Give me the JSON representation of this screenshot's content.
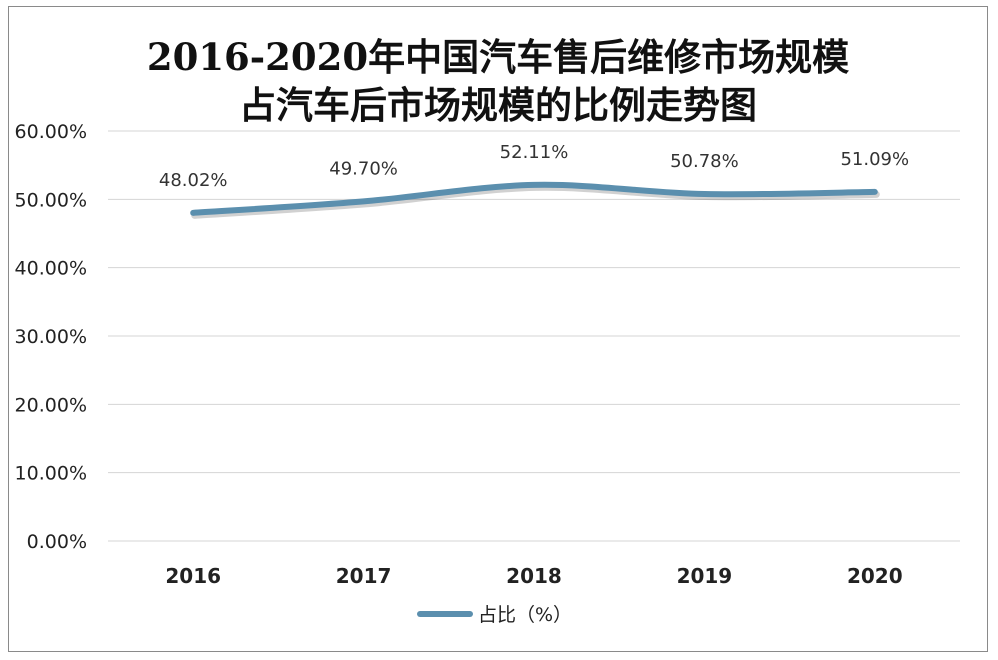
{
  "chart_data": {
    "type": "line",
    "title_lines": [
      "2016-2020年中国汽车售后维修市场规模",
      "占汽车后市场规模的比例走势图"
    ],
    "categories": [
      "2016",
      "2017",
      "2018",
      "2019",
      "2020"
    ],
    "series": [
      {
        "name": "占比（%）",
        "values": [
          48.02,
          49.7,
          52.11,
          50.78,
          51.09
        ],
        "labels": [
          "48.02%",
          "49.70%",
          "52.11%",
          "50.78%",
          "51.09%"
        ],
        "color": "#5b8fae"
      }
    ],
    "yticks": [
      "0.00%",
      "10.00%",
      "20.00%",
      "30.00%",
      "40.00%",
      "50.00%",
      "60.00%"
    ],
    "ylim": [
      0,
      60
    ],
    "grid": true,
    "legend_position": "bottom",
    "smooth": true
  }
}
